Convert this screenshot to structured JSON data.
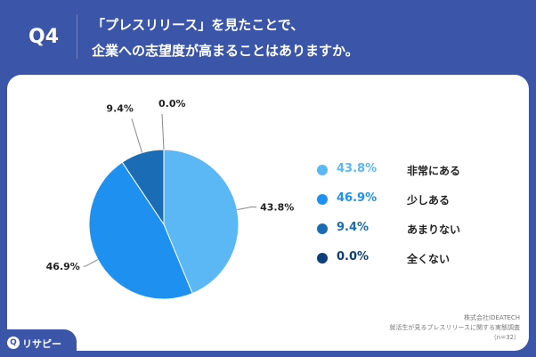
{
  "header": {
    "q_label": "Q4",
    "question_lines": [
      "「プレスリリース」を見たことで、",
      "企業への志望度が高まることはありますか。"
    ]
  },
  "chart_data": {
    "type": "pie",
    "categories": [
      "非常にある",
      "少しある",
      "あまりない",
      "全くない"
    ],
    "values": [
      43.8,
      46.9,
      9.4,
      0.0
    ],
    "value_labels": [
      "43.8%",
      "46.9%",
      "9.4%",
      "0.0%"
    ],
    "colors": [
      "#5bb8f5",
      "#1e90ef",
      "#1a6cb5",
      "#0e3f7a"
    ],
    "legend_position": "right"
  },
  "source": {
    "lines": [
      "株式会社IDEATECH",
      "就活生が見るプレスリリースに関する実態調査",
      "（n=32）"
    ]
  },
  "logo": {
    "mark": "Q",
    "text": "リサピー"
  },
  "colors": {
    "background": "#3b55a8",
    "card": "#ffffff"
  }
}
